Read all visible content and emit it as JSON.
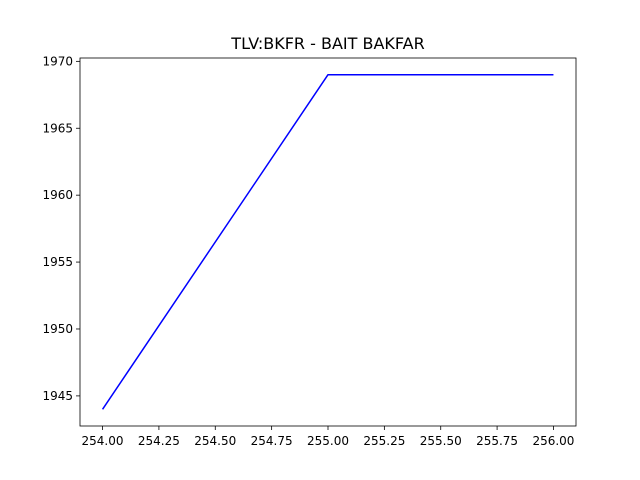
{
  "chart_data": {
    "type": "line",
    "title": "TLV:BKFR - BAIT BAKFAR",
    "xlabel": "",
    "ylabel": "",
    "x": [
      254.0,
      255.0,
      256.0
    ],
    "series": [
      {
        "values": [
          1944,
          1969,
          1969
        ],
        "color": "#0000ff"
      }
    ],
    "xlim": [
      253.9,
      256.1
    ],
    "ylim": [
      1942.75,
      1970.25
    ],
    "xticks": [
      "254.00",
      "254.25",
      "254.50",
      "254.75",
      "255.00",
      "255.25",
      "255.50",
      "255.75",
      "256.00"
    ],
    "yticks": [
      "1945",
      "1950",
      "1955",
      "1960",
      "1965",
      "1970"
    ],
    "grid": false,
    "legend": "none"
  }
}
